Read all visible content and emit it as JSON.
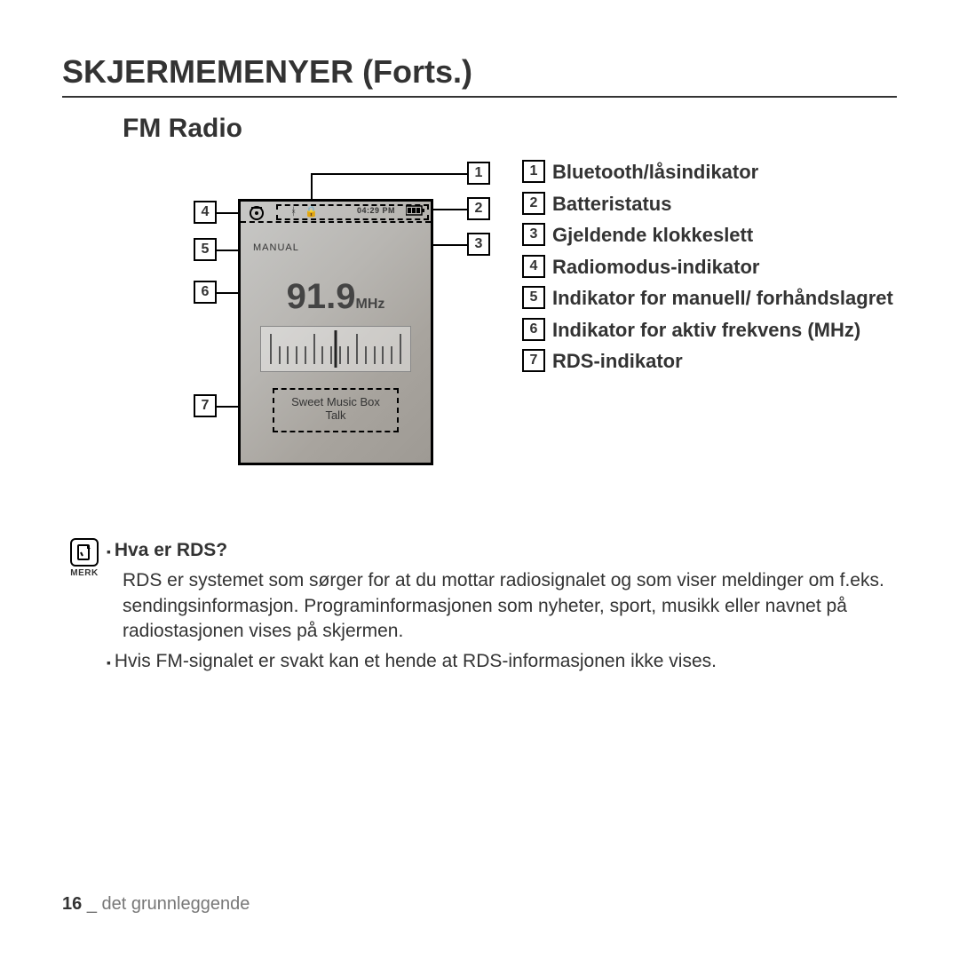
{
  "title": "SKJERMEMENYER (Forts.)",
  "subtitle": "FM Radio",
  "device": {
    "time": "04:29 PM",
    "manual": "MANUAL",
    "freq": "91.9",
    "freq_unit": "MHz",
    "rds_line1": "Sweet Music Box",
    "rds_line2": "Talk"
  },
  "callouts": {
    "c1": "1",
    "c2": "2",
    "c3": "3",
    "c4": "4",
    "c5": "5",
    "c6": "6",
    "c7": "7"
  },
  "legend": [
    {
      "n": "1",
      "t": "Bluetooth/låsindikator"
    },
    {
      "n": "2",
      "t": "Batteristatus"
    },
    {
      "n": "3",
      "t": "Gjeldende klokkeslett"
    },
    {
      "n": "4",
      "t": "Radiomodus-indikator"
    },
    {
      "n": "5",
      "t": "Indikator for manuell/ forhåndslagret"
    },
    {
      "n": "6",
      "t": "Indikator for aktiv frekvens (MHz)"
    },
    {
      "n": "7",
      "t": "RDS-indikator"
    }
  ],
  "note": {
    "label": "MERK",
    "q": "Hva er RDS?",
    "p1": "RDS er systemet som sørger for at du mottar radiosignalet og som viser meldinger om f.eks. sendingsinformasjon. Programinformasjonen som nyheter, sport, musikk eller navnet på radiostasjonen vises på skjermen.",
    "p2": "Hvis FM-signalet er svakt kan et hende at RDS-informasjonen ikke vises."
  },
  "footer": {
    "page": "16",
    "section": "det grunnleggende"
  },
  "colors": {
    "text": "#333333",
    "rule": "#333333",
    "device_border": "#000000"
  }
}
